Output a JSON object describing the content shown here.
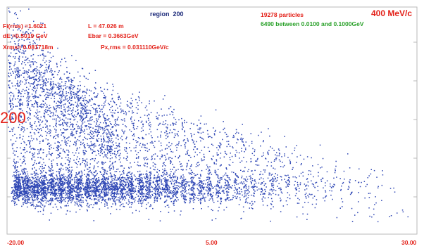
{
  "chart_data": {
    "type": "scatter",
    "x_ticks": [
      "-20.00",
      "5.00",
      "30.00"
    ],
    "xlim": [
      -20,
      30
    ],
    "annotations": {
      "region_label": "region",
      "region_value": "200",
      "particles": "19278 particles",
      "between": "6490 between 0.0100 and 0.1000GeV",
      "momentum": "400 MeV/c",
      "fi_rms": "Fi(rms) =1.6021",
      "length": "L =  47.026 m",
      "de": "dE =0.5019 GeV",
      "ebar": "Ebar =  0.3663GeV",
      "xrms": "Xrms= 0.081718m",
      "px_rms": "Px,rms = 0.031110GeV/c",
      "side_marker": "200"
    },
    "point_color": "#2f47b5",
    "frame_color": "#b9b9b9",
    "bunches": [
      {
        "x": -18.8,
        "points": 360
      },
      {
        "x": -17.7,
        "points": 340
      },
      {
        "x": -16.6,
        "points": 320
      },
      {
        "x": -15.6,
        "points": 300
      },
      {
        "x": -14.5,
        "points": 290
      },
      {
        "x": -13.4,
        "points": 280
      },
      {
        "x": -12.4,
        "points": 270
      },
      {
        "x": -11.3,
        "points": 260
      },
      {
        "x": -10.2,
        "points": 250
      },
      {
        "x": -9.2,
        "points": 240
      },
      {
        "x": -8.1,
        "points": 230
      },
      {
        "x": -7.0,
        "points": 220
      },
      {
        "x": -6.0,
        "points": 210
      },
      {
        "x": -4.9,
        "points": 200
      },
      {
        "x": -3.8,
        "points": 190
      },
      {
        "x": -2.8,
        "points": 175
      },
      {
        "x": -1.7,
        "points": 165
      },
      {
        "x": -0.6,
        "points": 155
      },
      {
        "x": 0.4,
        "points": 145
      },
      {
        "x": 1.5,
        "points": 135
      },
      {
        "x": 2.6,
        "points": 125
      },
      {
        "x": 3.6,
        "points": 115
      },
      {
        "x": 4.7,
        "points": 105
      },
      {
        "x": 5.8,
        "points": 95
      },
      {
        "x": 6.8,
        "points": 88
      },
      {
        "x": 7.9,
        "points": 80
      },
      {
        "x": 9.0,
        "points": 72
      },
      {
        "x": 10.0,
        "points": 65
      },
      {
        "x": 11.1,
        "points": 58
      },
      {
        "x": 12.2,
        "points": 52
      },
      {
        "x": 13.2,
        "points": 46
      },
      {
        "x": 14.3,
        "points": 40
      },
      {
        "x": 15.4,
        "points": 35
      },
      {
        "x": 16.4,
        "points": 30
      },
      {
        "x": 17.5,
        "points": 26
      },
      {
        "x": 18.6,
        "points": 22
      },
      {
        "x": 19.6,
        "points": 18
      },
      {
        "x": 20.7,
        "points": 15
      },
      {
        "x": 21.8,
        "points": 12
      },
      {
        "x": 22.8,
        "points": 10
      },
      {
        "x": 23.9,
        "points": 8
      },
      {
        "x": 25.0,
        "points": 6
      },
      {
        "x": 26.0,
        "points": 5
      },
      {
        "x": 27.1,
        "points": 4
      }
    ]
  }
}
